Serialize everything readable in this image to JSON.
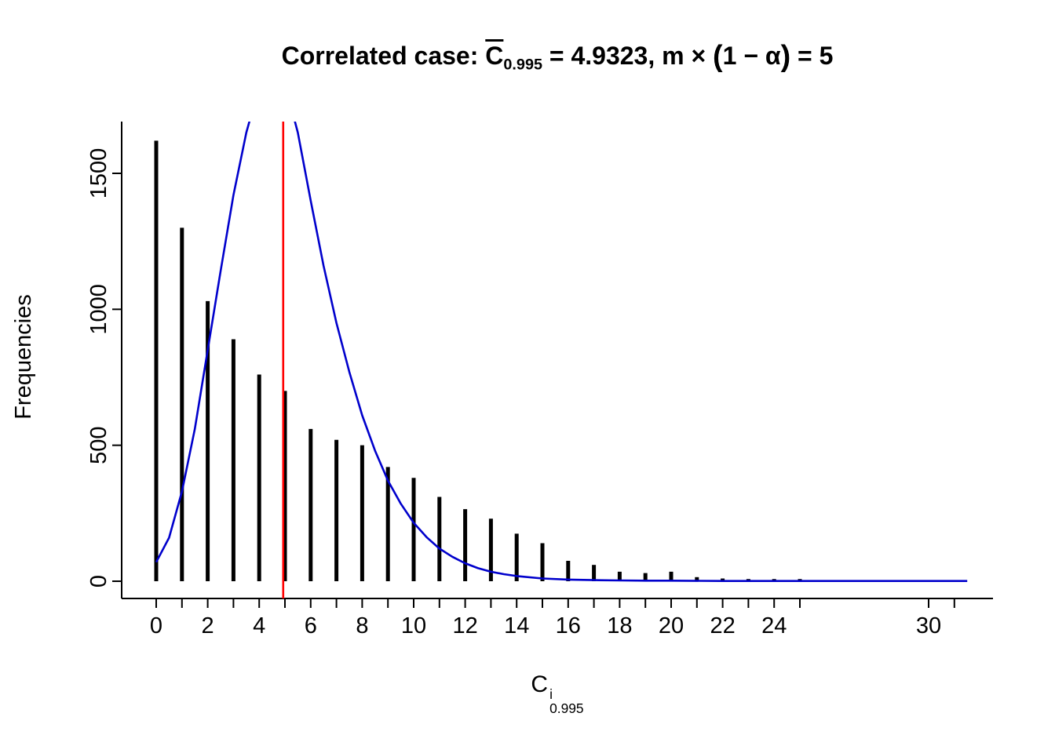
{
  "title_parts": {
    "prefix": "Correlated case: ",
    "c": "C",
    "c_sub": "0.995",
    "mid": " = 4.9323,  m × ",
    "paren_open": "(",
    "paren_inner": "1 − α",
    "paren_close": ")",
    "suffix": " = 5"
  },
  "ylabel": "Frequencies",
  "xlabel_parts": {
    "c": "C",
    "sup": "i",
    "sub": "0.995"
  },
  "chart_data": {
    "type": "bar",
    "title": "Correlated case: C̄_0.995 = 4.9323, m × (1 − α) = 5",
    "xlabel": "C^i_0.995",
    "ylabel": "Frequencies",
    "xlim": [
      -1.3,
      32.5
    ],
    "ylim": [
      0,
      1690
    ],
    "grid": false,
    "colors": {
      "spikes": "#000000",
      "curve": "#0000cc",
      "vline": "#ff0000"
    },
    "x_ticks": [
      0,
      1,
      2,
      3,
      4,
      5,
      6,
      7,
      8,
      9,
      10,
      11,
      12,
      13,
      14,
      15,
      16,
      17,
      18,
      19,
      20,
      21,
      22,
      23,
      24,
      25,
      30,
      31
    ],
    "x_labels": [
      [
        0,
        "0"
      ],
      [
        2,
        "2"
      ],
      [
        4,
        "4"
      ],
      [
        6,
        "6"
      ],
      [
        8,
        "8"
      ],
      [
        10,
        "10"
      ],
      [
        12,
        "12"
      ],
      [
        14,
        "14"
      ],
      [
        16,
        "16"
      ],
      [
        18,
        "18"
      ],
      [
        20,
        "20"
      ],
      [
        22,
        "22"
      ],
      [
        24,
        "24"
      ],
      [
        30,
        "30"
      ]
    ],
    "y_ticks": [
      [
        0,
        "0"
      ],
      [
        500,
        "500"
      ],
      [
        1000,
        "1000"
      ],
      [
        1500,
        "1500"
      ]
    ],
    "spikes": [
      [
        0,
        1620
      ],
      [
        1,
        1300
      ],
      [
        2,
        1030
      ],
      [
        3,
        890
      ],
      [
        4,
        760
      ],
      [
        5,
        700
      ],
      [
        6,
        560
      ],
      [
        7,
        520
      ],
      [
        8,
        500
      ],
      [
        9,
        420
      ],
      [
        10,
        380
      ],
      [
        11,
        310
      ],
      [
        12,
        265
      ],
      [
        13,
        230
      ],
      [
        14,
        175
      ],
      [
        15,
        140
      ],
      [
        16,
        75
      ],
      [
        17,
        60
      ],
      [
        18,
        35
      ],
      [
        19,
        30
      ],
      [
        20,
        35
      ],
      [
        21,
        15
      ],
      [
        22,
        10
      ],
      [
        23,
        8
      ],
      [
        24,
        8
      ],
      [
        25,
        8
      ],
      [
        30,
        4
      ],
      [
        31,
        3
      ]
    ],
    "curve_points": [
      [
        0,
        70
      ],
      [
        0.5,
        160
      ],
      [
        1,
        330
      ],
      [
        1.5,
        560
      ],
      [
        2,
        850
      ],
      [
        2.5,
        1140
      ],
      [
        3,
        1420
      ],
      [
        3.5,
        1650
      ],
      [
        4,
        1820
      ],
      [
        4.5,
        1890
      ],
      [
        5,
        1830
      ],
      [
        5.5,
        1650
      ],
      [
        6,
        1400
      ],
      [
        6.5,
        1160
      ],
      [
        7,
        950
      ],
      [
        7.5,
        770
      ],
      [
        8,
        610
      ],
      [
        8.5,
        480
      ],
      [
        9,
        370
      ],
      [
        9.5,
        285
      ],
      [
        10,
        215
      ],
      [
        10.5,
        162
      ],
      [
        11,
        120
      ],
      [
        11.5,
        90
      ],
      [
        12,
        66
      ],
      [
        12.5,
        48
      ],
      [
        13,
        35
      ],
      [
        13.5,
        26
      ],
      [
        14,
        19
      ],
      [
        15,
        10
      ],
      [
        16,
        6
      ],
      [
        17,
        4
      ],
      [
        18,
        3
      ],
      [
        19,
        2
      ],
      [
        20,
        2
      ],
      [
        22,
        1
      ],
      [
        24,
        1
      ],
      [
        26,
        1
      ],
      [
        28,
        1
      ],
      [
        30,
        1
      ],
      [
        31.5,
        1
      ]
    ],
    "vline_x": 4.9323
  }
}
